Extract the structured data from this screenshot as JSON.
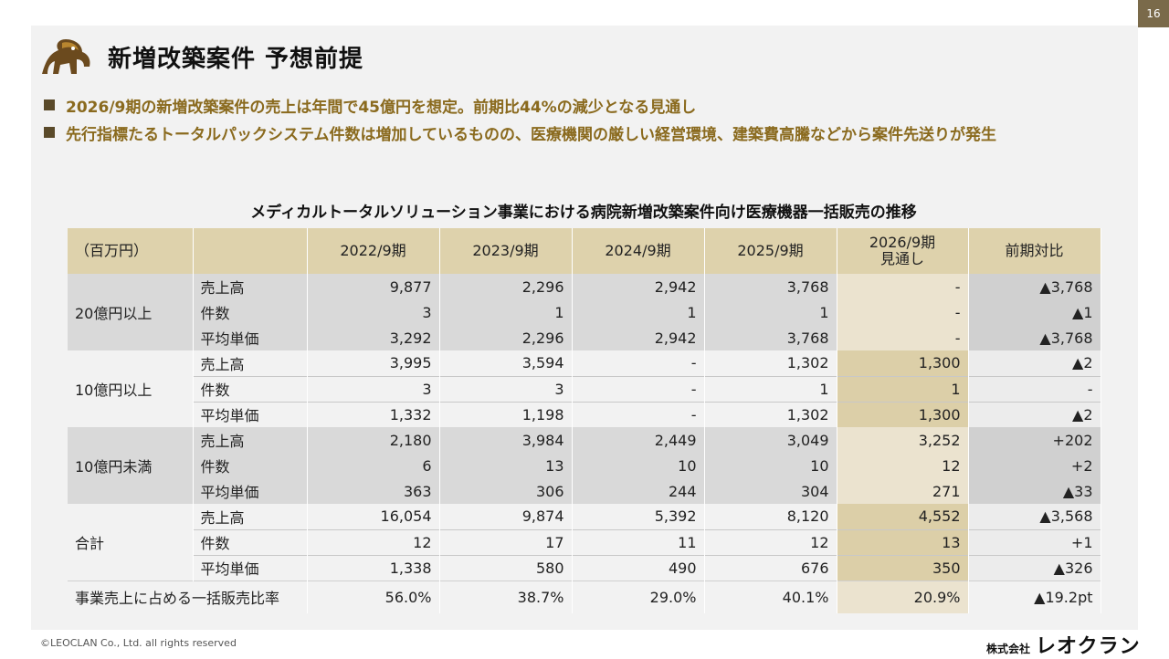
{
  "page_number": "16",
  "title": "新増改築案件 予想前提",
  "bullets": [
    "2026/9期の新増改築案件の売上は年間で45億円を想定。前期比44%の減少となる見通し",
    "先行指標たるトータルパックシステム件数は増加しているものの、医療機関の厳しい経営環境、建築費高騰などから案件先送りが発生"
  ],
  "table": {
    "caption": "メディカルトータルソリューション事業における病院新増改築案件向け医療機器一括販売の推移",
    "headers": [
      "（百万円）",
      "",
      "2022/9期",
      "2023/9期",
      "2024/9期",
      "2025/9期",
      "2026/9期",
      "見通し",
      "前期対比"
    ],
    "groups": [
      {
        "name": "20億円以上",
        "rows": [
          {
            "label": "売上高",
            "values": [
              "9,877",
              "2,296",
              "2,942",
              "3,768",
              "-",
              "▲3,768"
            ]
          },
          {
            "label": "件数",
            "values": [
              "3",
              "1",
              "1",
              "1",
              "-",
              "▲1"
            ]
          },
          {
            "label": "平均単価",
            "values": [
              "3,292",
              "2,296",
              "2,942",
              "3,768",
              "-",
              "▲3,768"
            ]
          }
        ]
      },
      {
        "name": "10億円以上",
        "rows": [
          {
            "label": "売上高",
            "values": [
              "3,995",
              "3,594",
              "-",
              "1,302",
              "1,300",
              "▲2"
            ]
          },
          {
            "label": "件数",
            "values": [
              "3",
              "3",
              "-",
              "1",
              "1",
              "-"
            ]
          },
          {
            "label": "平均単価",
            "values": [
              "1,332",
              "1,198",
              "-",
              "1,302",
              "1,300",
              "▲2"
            ]
          }
        ]
      },
      {
        "name": "10億円未満",
        "rows": [
          {
            "label": "売上高",
            "values": [
              "2,180",
              "3,984",
              "2,449",
              "3,049",
              "3,252",
              "+202"
            ]
          },
          {
            "label": "件数",
            "values": [
              "6",
              "13",
              "10",
              "10",
              "12",
              "+2"
            ]
          },
          {
            "label": "平均単価",
            "values": [
              "363",
              "306",
              "244",
              "304",
              "271",
              "▲33"
            ]
          }
        ]
      },
      {
        "name": "合計",
        "rows": [
          {
            "label": "売上高",
            "values": [
              "16,054",
              "9,874",
              "5,392",
              "8,120",
              "4,552",
              "▲3,568"
            ]
          },
          {
            "label": "件数",
            "values": [
              "12",
              "17",
              "11",
              "12",
              "13",
              "+1"
            ]
          },
          {
            "label": "平均単価",
            "values": [
              "1,338",
              "580",
              "490",
              "676",
              "350",
              "▲326"
            ]
          }
        ]
      }
    ],
    "ratio_row": {
      "label": "事業売上に占める一括販売比率",
      "values": [
        "56.0%",
        "38.7%",
        "29.0%",
        "40.1%",
        "20.9%",
        "▲19.2pt"
      ]
    }
  },
  "footer": {
    "copyright": "©LEOCLAN Co., Ltd. all rights reserved",
    "company_prefix": "株式会社",
    "company_name": "レオクラン"
  },
  "colors": {
    "accent_gold": "#8a6a1e",
    "header_beige": "#ded2ac",
    "row_gray": "#d9d9d9"
  }
}
